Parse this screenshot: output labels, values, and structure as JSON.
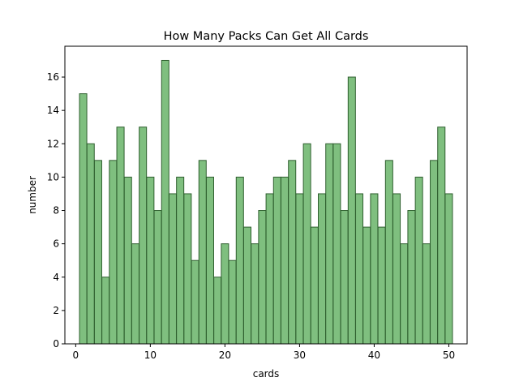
{
  "chart_data": {
    "type": "bar",
    "title": "How Many Packs Can Get All Cards",
    "xlabel": "cards",
    "ylabel": "number",
    "x": [
      1,
      2,
      3,
      4,
      5,
      6,
      7,
      8,
      9,
      10,
      11,
      12,
      13,
      14,
      15,
      16,
      17,
      18,
      19,
      20,
      21,
      22,
      23,
      24,
      25,
      26,
      27,
      28,
      29,
      30,
      31,
      32,
      33,
      34,
      35,
      36,
      37,
      38,
      39,
      40,
      41,
      42,
      43,
      44,
      45,
      46,
      47,
      48,
      49,
      50
    ],
    "values": [
      15,
      12,
      11,
      4,
      11,
      13,
      10,
      6,
      13,
      10,
      8,
      17,
      9,
      10,
      9,
      5,
      11,
      10,
      4,
      6,
      5,
      10,
      7,
      6,
      8,
      9,
      10,
      10,
      11,
      9,
      12,
      7,
      9,
      12,
      12,
      8,
      16,
      9,
      7,
      9,
      7,
      11,
      9,
      6,
      8,
      10,
      6,
      11,
      13,
      9
    ],
    "xlim": [
      -1.45,
      52.45
    ],
    "ylim": [
      0,
      17.85
    ],
    "xticks": [
      0,
      10,
      20,
      30,
      40,
      50
    ],
    "yticks": [
      0,
      2,
      4,
      6,
      8,
      10,
      12,
      14,
      16
    ],
    "bar_color": "#7fbf7f",
    "edge_color": "#2f5f2f",
    "grid": false,
    "legend": false
  }
}
